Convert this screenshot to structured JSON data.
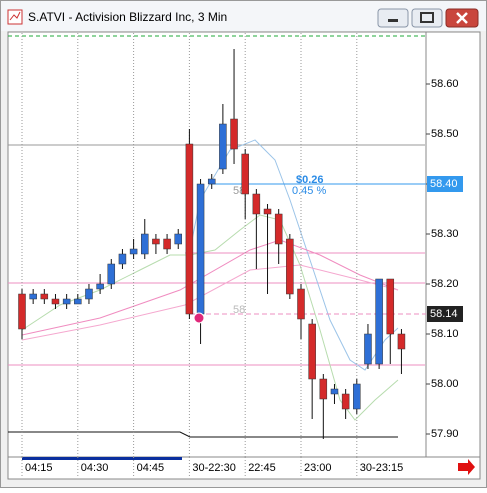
{
  "window": {
    "title": "S.ATVI - Activision Blizzard Inc, 3 Min"
  },
  "chart_data": {
    "type": "candlestick",
    "categories": [
      "04:15",
      null,
      null,
      null,
      null,
      "04:30",
      null,
      null,
      null,
      null,
      "04:45",
      null,
      null,
      null,
      null,
      "30-22:30",
      null,
      null,
      null,
      null,
      "22:45",
      null,
      null,
      null,
      null,
      "23:00",
      null,
      null,
      null,
      null,
      "30-23:15",
      null,
      null,
      null,
      null
    ],
    "open": [
      58.18,
      58.17,
      58.18,
      58.17,
      58.16,
      58.16,
      58.17,
      58.19,
      58.2,
      58.24,
      58.26,
      58.26,
      58.29,
      58.29,
      58.28,
      58.48,
      58.14,
      58.4,
      58.43,
      58.53,
      58.46,
      58.38,
      58.35,
      58.34,
      58.29,
      58.19,
      58.12,
      58.01,
      57.98,
      57.98,
      57.95,
      58.04,
      58.04,
      58.21,
      58.1
    ],
    "high": [
      58.19,
      58.19,
      58.19,
      58.18,
      58.18,
      58.18,
      58.2,
      58.22,
      58.25,
      58.27,
      58.29,
      58.33,
      58.3,
      58.3,
      58.31,
      58.51,
      58.41,
      58.42,
      58.56,
      58.67,
      58.47,
      58.39,
      58.36,
      58.35,
      58.3,
      58.2,
      58.13,
      58.02,
      58.0,
      57.99,
      58.01,
      58.12,
      58.21,
      58.21,
      58.11
    ],
    "low": [
      58.09,
      58.16,
      58.16,
      58.15,
      58.15,
      58.16,
      58.16,
      58.18,
      58.19,
      58.23,
      58.25,
      58.25,
      58.26,
      58.26,
      58.27,
      58.13,
      58.08,
      58.39,
      58.42,
      58.44,
      58.33,
      58.23,
      58.18,
      58.24,
      58.17,
      58.09,
      57.93,
      57.89,
      57.96,
      57.93,
      57.94,
      58.03,
      58.03,
      58.04,
      58.02
    ],
    "close": [
      58.11,
      58.18,
      58.17,
      58.16,
      58.17,
      58.17,
      58.19,
      58.2,
      58.24,
      58.26,
      58.27,
      58.3,
      58.28,
      58.27,
      58.3,
      58.14,
      58.4,
      58.41,
      58.52,
      58.47,
      58.38,
      58.34,
      58.34,
      58.28,
      58.18,
      58.13,
      58.01,
      57.97,
      57.99,
      57.95,
      58.0,
      58.1,
      58.21,
      58.1,
      58.07
    ],
    "up_color": "#2e6fd6",
    "down_color": "#d42a2a",
    "ylim": [
      57.86,
      58.7
    ],
    "yticks": [
      {
        "value": 58.6,
        "label": "58.60"
      },
      {
        "value": 58.5,
        "label": "58.50"
      },
      {
        "value": 58.4,
        "label": "58.40"
      },
      {
        "value": 58.3,
        "label": "58.30"
      },
      {
        "value": 58.2,
        "label": "58.20"
      },
      {
        "value": 58.1,
        "label": "58.10"
      },
      {
        "value": 58.0,
        "label": "58.00"
      },
      {
        "value": 57.9,
        "label": "57.90"
      }
    ],
    "price_markers": [
      {
        "value": 58.4,
        "label": "58.40",
        "color": "#3399ee"
      },
      {
        "value": 58.14,
        "label": "58.14",
        "color": "#222222"
      }
    ],
    "annotations": [
      "$0.26",
      "0.45 %",
      "58",
      "58"
    ]
  }
}
